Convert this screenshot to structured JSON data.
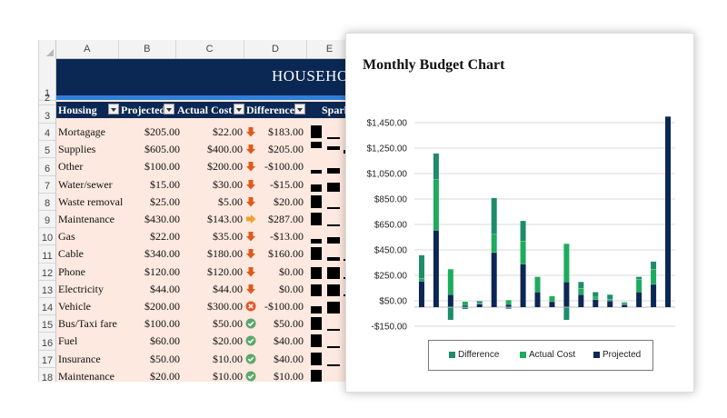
{
  "sheet": {
    "columns": [
      "A",
      "B",
      "C",
      "D",
      "E"
    ],
    "banner_title": "HOUSEHOLD",
    "headers": {
      "category": "Housing",
      "projected": "Projected",
      "actual": "Actual Cost",
      "difference": "Difference",
      "sparkline": "Spark"
    },
    "row_numbers": [
      "1",
      "2",
      "3",
      "4",
      "5",
      "6",
      "7",
      "8",
      "9",
      "10",
      "11",
      "12",
      "13",
      "14",
      "15",
      "16",
      "17",
      "18"
    ],
    "rows": [
      {
        "category": "Mortagage",
        "projected": "$205.00",
        "actual": "$22.00",
        "difference": "$183.00",
        "icon": "down-arrow-icon"
      },
      {
        "category": "Supplies",
        "projected": "$605.00",
        "actual": "$400.00",
        "difference": "$205.00",
        "icon": "down-arrow-icon"
      },
      {
        "category": "Other",
        "projected": "$100.00",
        "actual": "$200.00",
        "difference": "-$100.00",
        "icon": "down-arrow-icon"
      },
      {
        "category": "Water/sewer",
        "projected": "$15.00",
        "actual": "$30.00",
        "difference": "-$15.00",
        "icon": "down-arrow-icon"
      },
      {
        "category": "Waste removal",
        "projected": "$25.00",
        "actual": "$5.00",
        "difference": "$20.00",
        "icon": "down-arrow-icon"
      },
      {
        "category": "Maintenance",
        "projected": "$430.00",
        "actual": "$143.00",
        "difference": "$287.00",
        "icon": "right-arrow-icon"
      },
      {
        "category": "Gas",
        "projected": "$22.00",
        "actual": "$35.00",
        "difference": "-$13.00",
        "icon": "down-arrow-icon"
      },
      {
        "category": "Cable",
        "projected": "$340.00",
        "actual": "$180.00",
        "difference": "$160.00",
        "icon": "down-arrow-icon"
      },
      {
        "category": "Phone",
        "projected": "$120.00",
        "actual": "$120.00",
        "difference": "$0.00",
        "icon": "down-arrow-icon"
      },
      {
        "category": "Electricity",
        "projected": "$44.00",
        "actual": "$44.00",
        "difference": "$0.00",
        "icon": "down-arrow-icon"
      },
      {
        "category": "Vehicle",
        "projected": "$200.00",
        "actual": "$300.00",
        "difference": "-$100.00",
        "icon": "x-circle-icon"
      },
      {
        "category": "Bus/Taxi fare",
        "projected": "$100.00",
        "actual": "$50.00",
        "difference": "$50.00",
        "icon": "check-circle-icon"
      },
      {
        "category": "Fuel",
        "projected": "$60.00",
        "actual": "$20.00",
        "difference": "$40.00",
        "icon": "check-circle-icon"
      },
      {
        "category": "Insurance",
        "projected": "$50.00",
        "actual": "$10.00",
        "difference": "$40.00",
        "icon": "check-circle-icon"
      },
      {
        "category": "Maintenance",
        "projected": "$20.00",
        "actual": "$10.00",
        "difference": "$10.00",
        "icon": "check-circle-icon"
      }
    ],
    "colors": {
      "banner": "#0b2855",
      "accent_band": "#2f7fd8",
      "row_fill": "#fde9df",
      "down_arrow": "#e05a1c",
      "right_arrow": "#f0a22e",
      "x_circle": "#e8552a",
      "check_circle": "#5aa86b"
    }
  },
  "chart_data": {
    "type": "bar",
    "stacked": true,
    "title": "Monthly Budget Chart",
    "ylim": [
      -150,
      1550
    ],
    "yticks": [
      -150,
      50,
      250,
      450,
      650,
      850,
      1050,
      1250,
      1450
    ],
    "ytick_labels": [
      "-$150.00",
      "$50.00",
      "$250.00",
      "$450.00",
      "$650.00",
      "$850.00",
      "$1,050.00",
      "$1,250.00",
      "$1,450.00"
    ],
    "grid": true,
    "legend_position": "bottom",
    "series": [
      {
        "name": "Projected",
        "color": "#0b2855",
        "values": [
          205,
          605,
          100,
          15,
          25,
          430,
          22,
          340,
          120,
          44,
          200,
          100,
          60,
          50,
          20,
          120,
          180,
          1500
        ]
      },
      {
        "name": "Actual Cost",
        "color": "#1dab5e",
        "values": [
          22,
          400,
          200,
          30,
          5,
          143,
          35,
          180,
          120,
          44,
          300,
          50,
          20,
          10,
          10,
          100,
          120,
          0
        ]
      },
      {
        "name": "Difference",
        "color": "#1e8c6b",
        "values": [
          183,
          205,
          -100,
          -15,
          20,
          287,
          -13,
          160,
          0,
          0,
          -100,
          50,
          40,
          40,
          10,
          20,
          60,
          0
        ]
      }
    ]
  },
  "legend_labels": [
    "Difference",
    "Actual Cost",
    "Projected"
  ]
}
